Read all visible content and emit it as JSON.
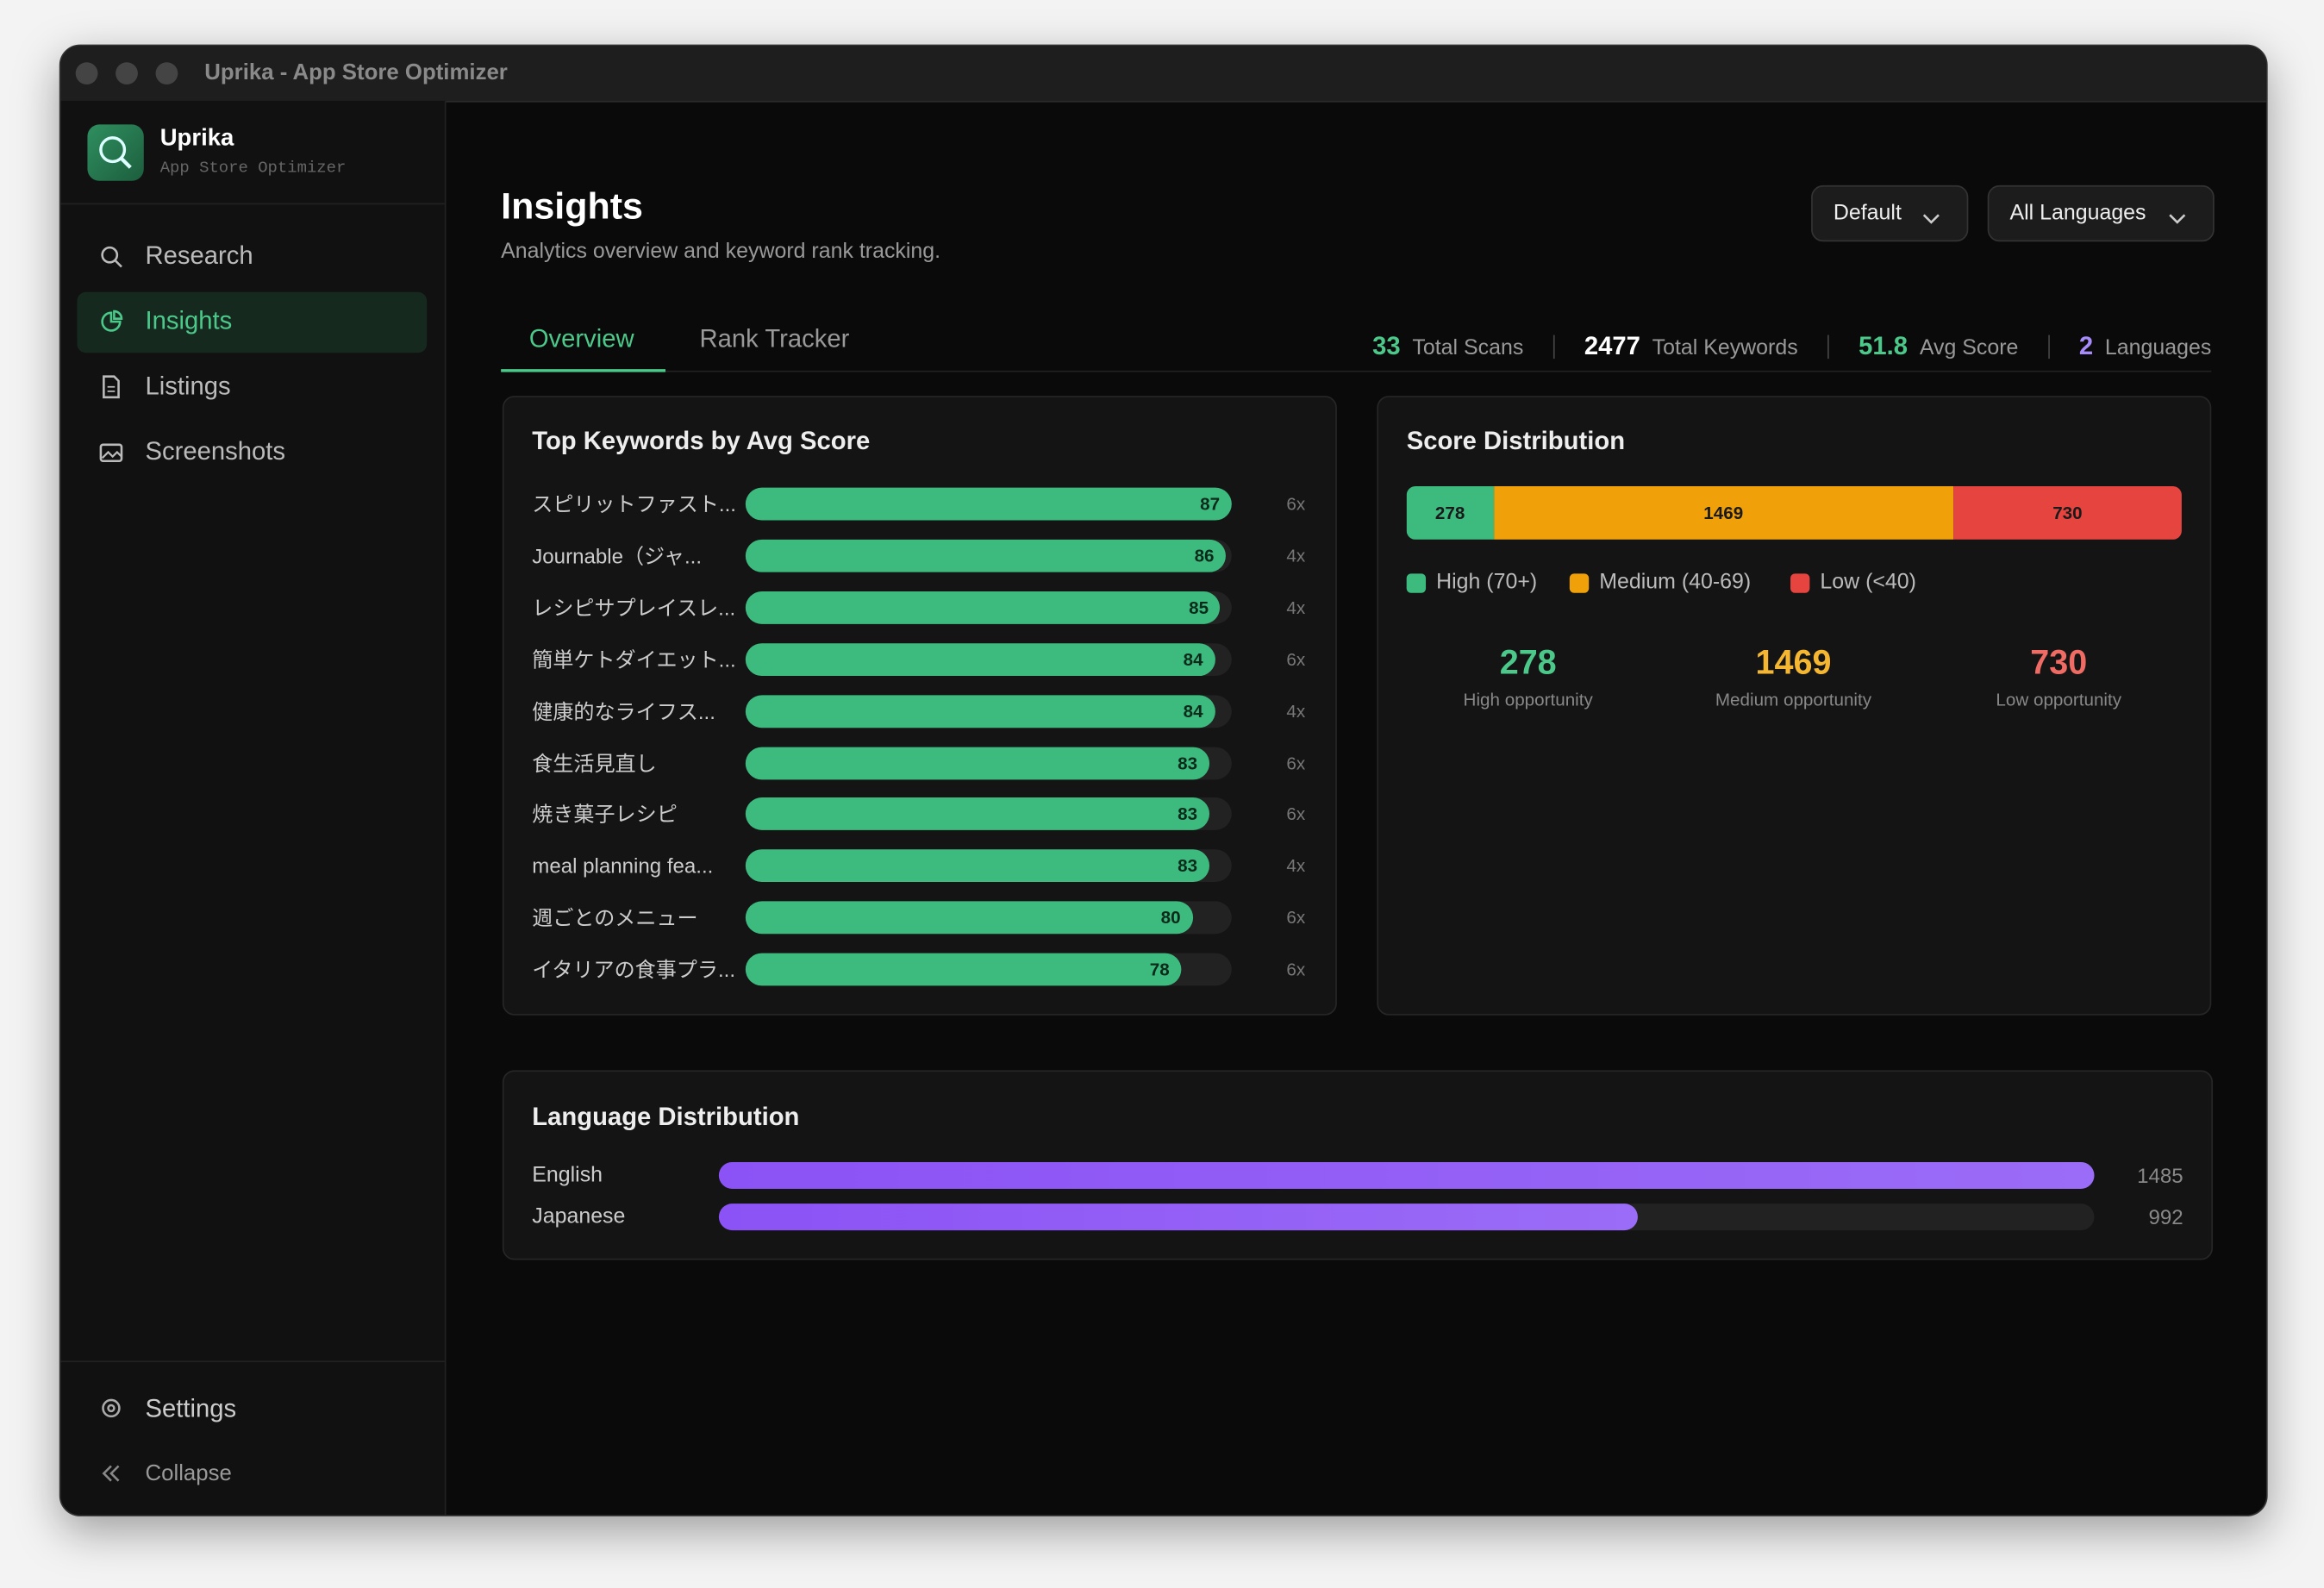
{
  "window": {
    "title": "Uprika - App Store Optimizer"
  },
  "sidebar": {
    "app_name": "Uprika",
    "app_subtitle": "App Store Optimizer",
    "nav": [
      "Research",
      "Insights",
      "Listings",
      "Screenshots"
    ],
    "active": 1,
    "settings": "Settings",
    "collapse": "Collapse"
  },
  "header": {
    "title": "Insights",
    "subtitle": "Analytics overview and keyword rank tracking.",
    "dropdowns": [
      "Default",
      "All Languages"
    ]
  },
  "tabs": [
    "Overview",
    "Rank Tracker"
  ],
  "stats": [
    {
      "value": 33,
      "label": "Total Scans",
      "color": "#4cc98a"
    },
    {
      "value": 2477,
      "label": "Total Keywords",
      "color": "#ffffff"
    },
    {
      "value": 51.8,
      "label": "Avg Score",
      "color": "#4cc98a"
    },
    {
      "value": 2,
      "label": "Languages",
      "color": "#a78bfa"
    }
  ],
  "top_keywords": {
    "title": "Top Keywords by Avg Score",
    "color": "#3dbb7f",
    "keywords": [
      "スピリットファスト...",
      "Journable（ジャ...",
      "レシピサプレイスレ...",
      "簡単ケトダイエット...",
      "健康的なライフス...",
      "食生活見直し",
      "焼き菓子レシピ",
      "meal planning fea...",
      "週ごとのメニュー",
      "イタリアの食事プラ..."
    ],
    "scores": [
      87,
      86,
      85,
      84,
      84,
      83,
      83,
      83,
      80,
      78
    ],
    "counts": [
      "6x",
      "4x",
      "4x",
      "6x",
      "4x",
      "6x",
      "6x",
      "4x",
      "6x",
      "6x"
    ]
  },
  "score_distribution": {
    "title": "Score Distribution",
    "segments": [
      {
        "name": "High (70+)",
        "value": 278,
        "color": "#3dbb7f",
        "caption": "High opportunity",
        "text_color": "#4cc98a"
      },
      {
        "name": "Medium (40-69)",
        "value": 1469,
        "color": "#f0a10a",
        "caption": "Medium opportunity",
        "text_color": "#f5b731"
      },
      {
        "name": "Low (<40)",
        "value": 730,
        "color": "#e5443f",
        "caption": "Low opportunity",
        "text_color": "#f06b63"
      }
    ]
  },
  "language_distribution": {
    "title": "Language Distribution",
    "color": "#9b6cf7",
    "languages": [
      "English",
      "Japanese"
    ],
    "values": [
      1485,
      992
    ]
  }
}
